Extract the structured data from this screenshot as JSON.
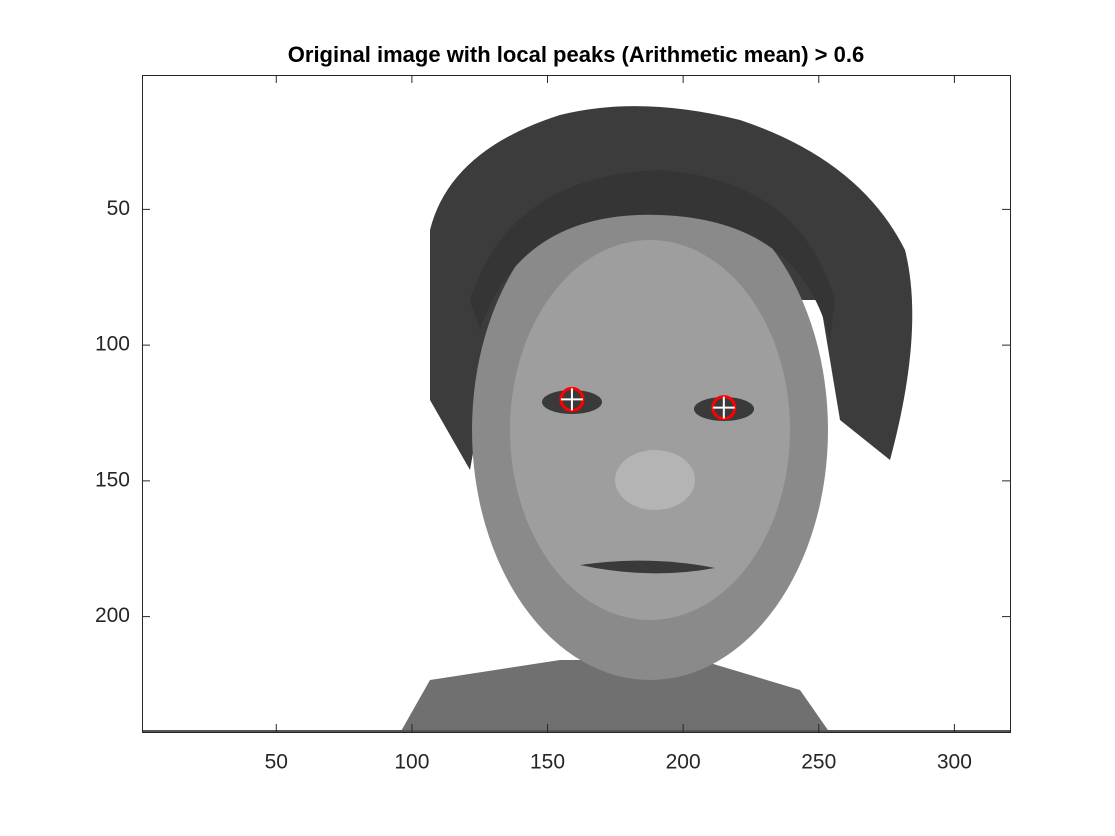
{
  "chart_data": {
    "type": "scatter",
    "title": "Original image with local peaks (Arithmetic mean) > 0.6",
    "x": [
      159,
      215
    ],
    "y": [
      120,
      123
    ],
    "xlim": [
      0.5,
      320.5
    ],
    "ylim": [
      0.5,
      242.5
    ],
    "xticks": [
      50,
      100,
      150,
      200,
      250,
      300
    ],
    "yticks": [
      50,
      100,
      150,
      200
    ],
    "y_reversed": true,
    "marker_color": "#ff0000",
    "cross_color": "#ffffff"
  }
}
